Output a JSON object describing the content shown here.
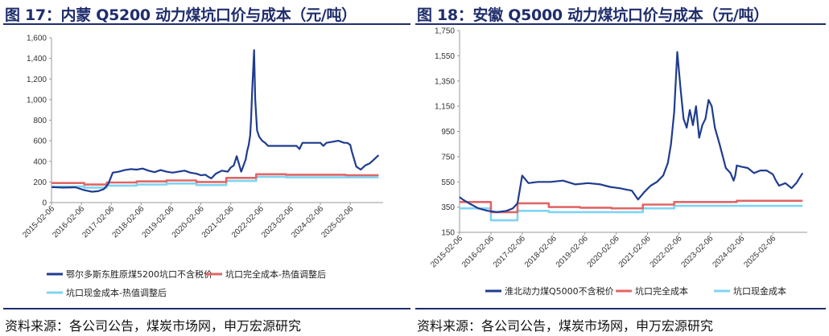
{
  "panels": [
    {
      "title": "图 17：内蒙 Q5200 动力煤坑口价与成本（元/吨）",
      "source": "资料来源：各公司公告，煤炭市场网，申万宏源研究",
      "colors": {
        "series1": "#1f3c8f",
        "series2": "#e06666",
        "series3": "#7fd4f2"
      },
      "chart_data": {
        "type": "line",
        "ylim": [
          0,
          1600
        ],
        "yticks": [
          0,
          200,
          400,
          600,
          800,
          1000,
          1200,
          1400,
          1600
        ],
        "ytick_labels": [
          "0",
          "200",
          "400",
          "600",
          "800",
          "1,000",
          "1,200",
          "1,400",
          "1,600"
        ],
        "xlim": [
          2015.1,
          2026.2
        ],
        "xticks": [
          2015.1,
          2016.1,
          2017.1,
          2018.1,
          2019.1,
          2020.1,
          2021.1,
          2022.1,
          2023.1,
          2024.1,
          2025.1
        ],
        "xtick_labels": [
          "2015-02-06",
          "2016-02-06",
          "2017-02-06",
          "2018-02-06",
          "2019-02-06",
          "2020-02-06",
          "2021-02-06",
          "2022-02-06",
          "2023-02-06",
          "2024-02-06",
          "2025-02-06"
        ],
        "series": [
          {
            "name": "鄂尔多斯东胜原煤5200坑口不含税价",
            "style": "line",
            "x": [
              2015.1,
              2015.5,
              2015.9,
              2016.2,
              2016.45,
              2016.65,
              2016.85,
              2017.0,
              2017.15,
              2017.35,
              2017.55,
              2017.75,
              2017.95,
              2018.15,
              2018.35,
              2018.55,
              2018.75,
              2018.95,
              2019.15,
              2019.35,
              2019.55,
              2019.75,
              2019.95,
              2020.1,
              2020.25,
              2020.35,
              2020.45,
              2020.6,
              2020.8,
              2021.0,
              2021.1,
              2021.2,
              2021.3,
              2021.45,
              2021.6,
              2021.65,
              2021.7,
              2021.75,
              2021.78,
              2021.82,
              2021.85,
              2021.88,
              2021.92,
              2021.98,
              2022.05,
              2022.15,
              2022.25,
              2022.35,
              2022.5,
              2022.7,
              2022.9,
              2023.1,
              2023.3,
              2023.4,
              2023.45,
              2023.5,
              2023.7,
              2023.9,
              2024.1,
              2024.2,
              2024.3,
              2024.5,
              2024.7,
              2024.9,
              2025.0,
              2025.1,
              2025.15,
              2025.3,
              2025.45,
              2025.6,
              2025.75,
              2025.9,
              2026.05
            ],
            "y": [
              150,
              145,
              148,
              120,
              105,
              110,
              130,
              180,
              290,
              300,
              315,
              325,
              320,
              330,
              310,
              295,
              315,
              300,
              290,
              300,
              310,
              290,
              280,
              265,
              270,
              250,
              235,
              280,
              310,
              300,
              340,
              360,
              450,
              300,
              420,
              500,
              560,
              650,
              800,
              1100,
              1280,
              1480,
              1000,
              700,
              640,
              600,
              580,
              550,
              550,
              550,
              550,
              550,
              550,
              520,
              550,
              580,
              580,
              580,
              580,
              550,
              580,
              590,
              600,
              580,
              580,
              560,
              500,
              350,
              320,
              360,
              380,
              420,
              460
            ]
          },
          {
            "name": "坑口完全成本-热值调整后",
            "style": "step",
            "x": [
              2015.1,
              2016.2,
              2016.95,
              2017.95,
              2018.95,
              2019.95,
              2020.95,
              2021.95,
              2022.95,
              2023.95,
              2024.95,
              2026.05
            ],
            "y": [
              190,
              175,
              195,
              205,
              215,
              200,
              240,
              275,
              270,
              270,
              265,
              265
            ]
          },
          {
            "name": "坑口现金成本-热值调整后",
            "style": "step",
            "x": [
              2015.1,
              2016.2,
              2016.95,
              2017.95,
              2018.95,
              2019.95,
              2020.95,
              2021.95,
              2022.95,
              2023.95,
              2024.95,
              2026.05
            ],
            "y": [
              155,
              145,
              165,
              175,
              185,
              170,
              210,
              250,
              245,
              245,
              245,
              245
            ]
          }
        ]
      }
    },
    {
      "title": "图 18：安徽 Q5000 动力煤坑口价与成本（元/吨）",
      "source": "资料来源：各公司公告，煤炭市场网，申万宏源研究",
      "colors": {
        "series1": "#1f3c8f",
        "series2": "#e06666",
        "series3": "#7fd4f2"
      },
      "chart_data": {
        "type": "line",
        "ylim": [
          150,
          1750
        ],
        "yticks": [
          150,
          350,
          550,
          750,
          950,
          1150,
          1350,
          1550,
          1750
        ],
        "ytick_labels": [
          "150",
          "350",
          "550",
          "750",
          "950",
          "1,150",
          "1,350",
          "1,550",
          "1,750"
        ],
        "xlim": [
          2015.1,
          2026.2
        ],
        "xticks": [
          2015.1,
          2016.1,
          2017.1,
          2018.1,
          2019.1,
          2020.1,
          2021.1,
          2022.1,
          2023.1,
          2024.1,
          2025.1
        ],
        "xtick_labels": [
          "2015-02-06",
          "2016-02-06",
          "2017-02-06",
          "2018-02-06",
          "2019-02-06",
          "2020-02-06",
          "2021-02-06",
          "2022-02-06",
          "2023-02-06",
          "2024-02-06",
          "2025-02-06"
        ],
        "series": [
          {
            "name": "淮北动力煤Q5000不含税价",
            "style": "line",
            "x": [
              2015.1,
              2015.2,
              2015.4,
              2015.7,
              2016.0,
              2016.3,
              2016.6,
              2016.8,
              2016.95,
              2017.1,
              2017.3,
              2017.6,
              2018.0,
              2018.4,
              2018.8,
              2019.2,
              2019.6,
              2019.9,
              2020.2,
              2020.4,
              2020.6,
              2020.8,
              2021.0,
              2021.2,
              2021.4,
              2021.6,
              2021.75,
              2021.85,
              2021.95,
              2022.05,
              2022.15,
              2022.25,
              2022.35,
              2022.45,
              2022.55,
              2022.65,
              2022.75,
              2022.85,
              2022.95,
              2023.05,
              2023.15,
              2023.25,
              2023.4,
              2023.6,
              2023.75,
              2023.85,
              2023.9,
              2023.95,
              2024.1,
              2024.3,
              2024.5,
              2024.7,
              2024.9,
              2025.1,
              2025.2,
              2025.3,
              2025.5,
              2025.7,
              2025.85,
              2026.05
            ],
            "y": [
              430,
              410,
              380,
              340,
              320,
              310,
              320,
              340,
              380,
              600,
              540,
              550,
              550,
              560,
              530,
              540,
              530,
              510,
              500,
              490,
              480,
              410,
              470,
              520,
              550,
              600,
              700,
              850,
              1100,
              1580,
              1300,
              1050,
              980,
              1120,
              1000,
              1150,
              900,
              1000,
              1050,
              1200,
              1150,
              980,
              850,
              660,
              620,
              560,
              600,
              680,
              670,
              660,
              620,
              640,
              640,
              610,
              560,
              520,
              540,
              500,
              540,
              620
            ]
          },
          {
            "name": "坑口完全成本",
            "style": "step",
            "x": [
              2015.1,
              2016.1,
              2016.95,
              2017.95,
              2018.95,
              2019.95,
              2020.95,
              2021.95,
              2022.95,
              2023.95,
              2024.95,
              2026.05
            ],
            "y": [
              390,
              310,
              380,
              350,
              345,
              340,
              370,
              390,
              390,
              400,
              400,
              400
            ]
          },
          {
            "name": "坑口现金成本",
            "style": "step",
            "x": [
              2015.1,
              2016.1,
              2016.95,
              2017.95,
              2018.95,
              2019.95,
              2020.95,
              2021.95,
              2022.95,
              2023.95,
              2024.95,
              2026.05
            ],
            "y": [
              340,
              245,
              320,
              310,
              310,
              310,
              340,
              360,
              360,
              360,
              360,
              360
            ]
          }
        ]
      }
    }
  ]
}
